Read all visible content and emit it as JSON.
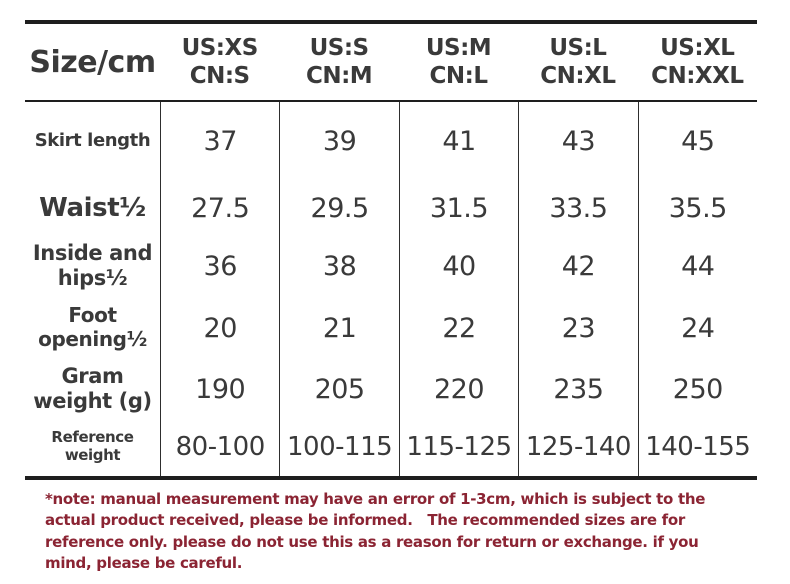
{
  "chart_data": {
    "type": "table",
    "corner_label": "Size/cm",
    "columns": [
      {
        "us": "US:XS",
        "cn": "CN:S"
      },
      {
        "us": "US:S",
        "cn": "CN:M"
      },
      {
        "us": "US:M",
        "cn": "CN:L"
      },
      {
        "us": "US:L",
        "cn": "CN:XL"
      },
      {
        "us": "US:XL",
        "cn": "CN:XXL"
      }
    ],
    "rows": [
      {
        "label": "Skirt length",
        "values": [
          "37",
          "39",
          "41",
          "43",
          "45"
        ]
      },
      {
        "label": "Waist½",
        "values": [
          "27.5",
          "29.5",
          "31.5",
          "33.5",
          "35.5"
        ]
      },
      {
        "label": "Inside and hips½",
        "values": [
          "36",
          "38",
          "40",
          "42",
          "44"
        ]
      },
      {
        "label": "Foot opening½",
        "values": [
          "20",
          "21",
          "22",
          "23",
          "24"
        ]
      },
      {
        "label": "Gram weight (g)",
        "values": [
          "190",
          "205",
          "220",
          "235",
          "250"
        ]
      },
      {
        "label": "Reference weight",
        "values": [
          "80-100",
          "100-115",
          "115-125",
          "125-140",
          "140-155"
        ]
      }
    ]
  },
  "note": {
    "text": "*note: manual measurement may have an error of 1-3cm, which is subject to the actual product received, please be informed.   The recommended sizes are for reference only. please do not use this as a reason for return or exchange. if you mind, please be careful."
  },
  "colors": {
    "text": "#3a3a3a",
    "note_text": "#8b2433",
    "line": "#1e1e1e"
  }
}
